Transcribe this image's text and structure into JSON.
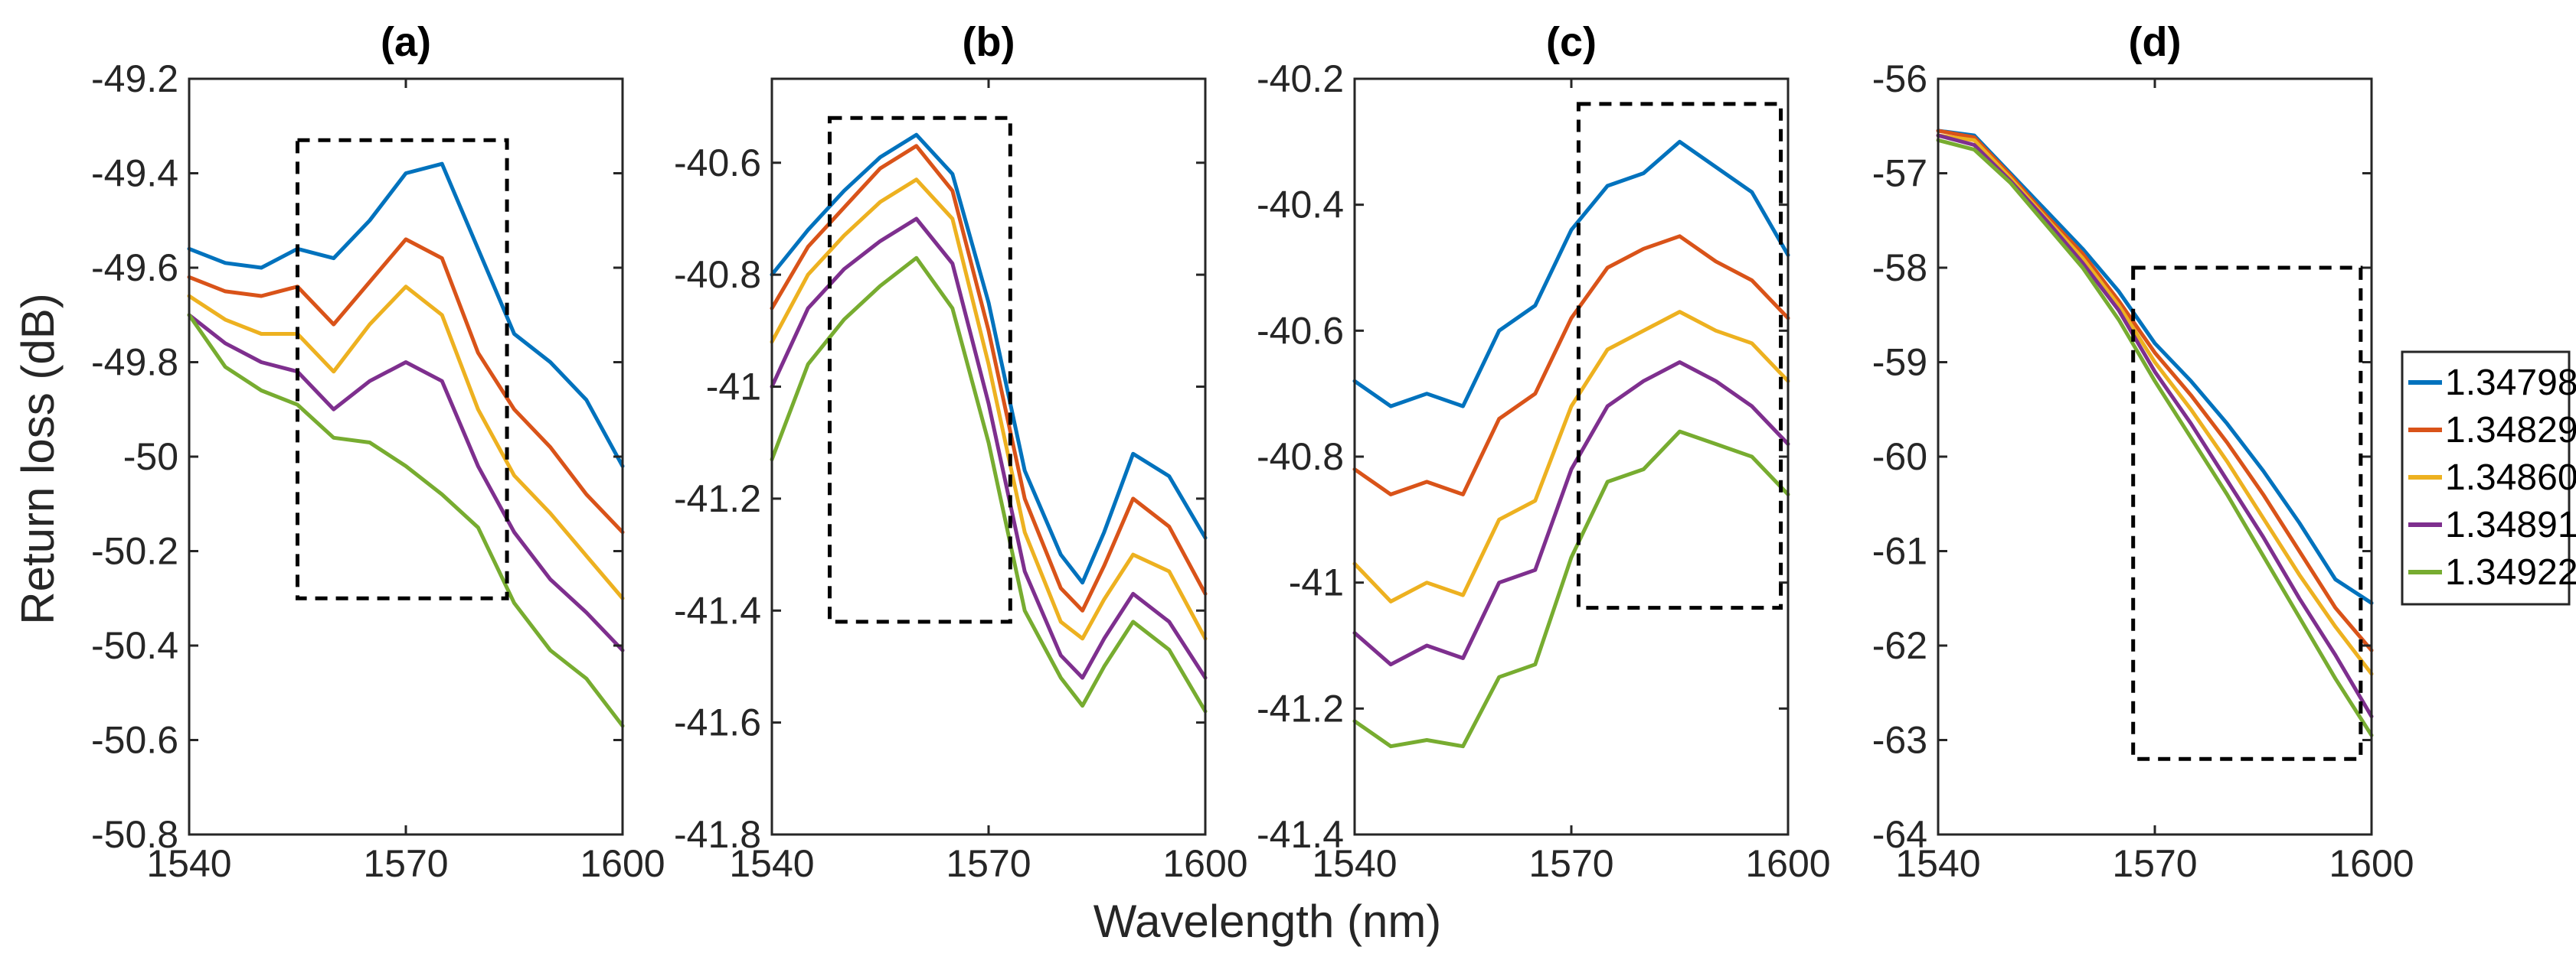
{
  "figure": {
    "ylabel": "Return loss (dB)",
    "xlabel": "Wavelength (nm)"
  },
  "legend": {
    "placement": "right",
    "entries": [
      {
        "label": "1.34798",
        "color": "#0072BD"
      },
      {
        "label": "1.34829",
        "color": "#D95319"
      },
      {
        "label": "1.34860",
        "color": "#EDB120"
      },
      {
        "label": "1.34891",
        "color": "#7E2F8E"
      },
      {
        "label": "1.34922",
        "color": "#77AC30"
      }
    ]
  },
  "chart_data": [
    {
      "type": "line",
      "title": "(a)",
      "xlabel": "Wavelength (nm)",
      "ylabel": "Return loss (dB)",
      "xlim": [
        1540,
        1600
      ],
      "ylim": [
        -50.8,
        -49.2
      ],
      "xticks": [
        1540,
        1570,
        1600
      ],
      "xtick_labels": [
        "1540",
        "1570",
        "1600"
      ],
      "yticks": [
        -49.2,
        -49.4,
        -49.6,
        -49.8,
        -50,
        -50.2,
        -50.4,
        -50.6,
        -50.8
      ],
      "ytick_labels": [
        "-49.2",
        "-49.4",
        "-49.6",
        "-49.8",
        "-50",
        "-50.2",
        "-50.4",
        "-50.6",
        "-50.8"
      ],
      "x": [
        1540,
        1545,
        1550,
        1555,
        1560,
        1565,
        1570,
        1575,
        1580,
        1585,
        1590,
        1595,
        1600
      ],
      "series": [
        {
          "name": "1.34798",
          "values": [
            -49.56,
            -49.59,
            -49.6,
            -49.56,
            -49.58,
            -49.5,
            -49.4,
            -49.38,
            -49.56,
            -49.74,
            -49.8,
            -49.88,
            -50.02
          ]
        },
        {
          "name": "1.34829",
          "values": [
            -49.62,
            -49.65,
            -49.66,
            -49.64,
            -49.72,
            -49.63,
            -49.54,
            -49.58,
            -49.78,
            -49.9,
            -49.98,
            -50.08,
            -50.16
          ]
        },
        {
          "name": "1.34860",
          "values": [
            -49.66,
            -49.71,
            -49.74,
            -49.74,
            -49.82,
            -49.72,
            -49.64,
            -49.7,
            -49.9,
            -50.04,
            -50.12,
            -50.21,
            -50.3
          ]
        },
        {
          "name": "1.34891",
          "values": [
            -49.7,
            -49.76,
            -49.8,
            -49.82,
            -49.9,
            -49.84,
            -49.8,
            -49.84,
            -50.02,
            -50.16,
            -50.26,
            -50.33,
            -50.41
          ]
        },
        {
          "name": "1.34922",
          "values": [
            -49.7,
            -49.81,
            -49.86,
            -49.89,
            -49.96,
            -49.97,
            -50.02,
            -50.08,
            -50.15,
            -50.31,
            -50.41,
            -50.47,
            -50.57
          ]
        }
      ],
      "annotation_box": {
        "x": [
          1555,
          1584
        ],
        "y": [
          -49.33,
          -50.3
        ]
      }
    },
    {
      "type": "line",
      "title": "(b)",
      "xlabel": "Wavelength (nm)",
      "ylabel": "",
      "xlim": [
        1540,
        1600
      ],
      "ylim": [
        -41.8,
        -40.45
      ],
      "xticks": [
        1540,
        1570,
        1600
      ],
      "xtick_labels": [
        "1540",
        "1570",
        "1600"
      ],
      "yticks": [
        -40.6,
        -40.8,
        -41,
        -41.2,
        -41.4,
        -41.6,
        -41.8
      ],
      "ytick_labels": [
        "-40.6",
        "-40.8",
        "-41",
        "-41.2",
        "-41.4",
        "-41.6",
        "-41.8"
      ],
      "x": [
        1540,
        1545,
        1550,
        1555,
        1560,
        1565,
        1570,
        1575,
        1580,
        1583,
        1586,
        1590,
        1595,
        1600
      ],
      "series": [
        {
          "name": "1.34798",
          "values": [
            -40.8,
            -40.72,
            -40.65,
            -40.59,
            -40.55,
            -40.62,
            -40.85,
            -41.15,
            -41.3,
            -41.35,
            -41.26,
            -41.12,
            -41.16,
            -41.27
          ]
        },
        {
          "name": "1.34829",
          "values": [
            -40.86,
            -40.75,
            -40.68,
            -40.61,
            -40.57,
            -40.65,
            -40.9,
            -41.2,
            -41.36,
            -41.4,
            -41.32,
            -41.2,
            -41.25,
            -41.37
          ]
        },
        {
          "name": "1.34860",
          "values": [
            -40.92,
            -40.8,
            -40.73,
            -40.67,
            -40.63,
            -40.7,
            -40.96,
            -41.26,
            -41.42,
            -41.45,
            -41.38,
            -41.3,
            -41.33,
            -41.45
          ]
        },
        {
          "name": "1.34891",
          "values": [
            -41.0,
            -40.86,
            -40.79,
            -40.74,
            -40.7,
            -40.78,
            -41.03,
            -41.33,
            -41.48,
            -41.52,
            -41.45,
            -41.37,
            -41.42,
            -41.52
          ]
        },
        {
          "name": "1.34922",
          "values": [
            -41.13,
            -40.96,
            -40.88,
            -40.82,
            -40.77,
            -40.86,
            -41.1,
            -41.4,
            -41.52,
            -41.57,
            -41.5,
            -41.42,
            -41.47,
            -41.58
          ]
        }
      ],
      "annotation_box": {
        "x": [
          1548,
          1573
        ],
        "y": [
          -40.52,
          -41.42
        ]
      }
    },
    {
      "type": "line",
      "title": "(c)",
      "xlabel": "Wavelength (nm)",
      "ylabel": "",
      "xlim": [
        1540,
        1600
      ],
      "ylim": [
        -41.4,
        -40.2
      ],
      "xticks": [
        1540,
        1570,
        1600
      ],
      "xtick_labels": [
        "1540",
        "1570",
        "1600"
      ],
      "yticks": [
        -40.2,
        -40.4,
        -40.6,
        -40.8,
        -41,
        -41.2,
        -41.4
      ],
      "ytick_labels": [
        "-40.2",
        "-40.4",
        "-40.6",
        "-40.8",
        "-41",
        "-41.2",
        "-41.4"
      ],
      "x": [
        1540,
        1545,
        1550,
        1555,
        1560,
        1565,
        1570,
        1575,
        1580,
        1585,
        1590,
        1595,
        1600
      ],
      "series": [
        {
          "name": "1.34798",
          "values": [
            -40.68,
            -40.72,
            -40.7,
            -40.72,
            -40.6,
            -40.56,
            -40.44,
            -40.37,
            -40.35,
            -40.3,
            -40.34,
            -40.38,
            -40.48
          ]
        },
        {
          "name": "1.34829",
          "values": [
            -40.82,
            -40.86,
            -40.84,
            -40.86,
            -40.74,
            -40.7,
            -40.58,
            -40.5,
            -40.47,
            -40.45,
            -40.49,
            -40.52,
            -40.58
          ]
        },
        {
          "name": "1.34860",
          "values": [
            -40.97,
            -41.03,
            -41.0,
            -41.02,
            -40.9,
            -40.87,
            -40.72,
            -40.63,
            -40.6,
            -40.57,
            -40.6,
            -40.62,
            -40.68
          ]
        },
        {
          "name": "1.34891",
          "values": [
            -41.08,
            -41.13,
            -41.1,
            -41.12,
            -41.0,
            -40.98,
            -40.82,
            -40.72,
            -40.68,
            -40.65,
            -40.68,
            -40.72,
            -40.78
          ]
        },
        {
          "name": "1.34922",
          "values": [
            -41.22,
            -41.26,
            -41.25,
            -41.26,
            -41.15,
            -41.13,
            -40.96,
            -40.84,
            -40.82,
            -40.76,
            -40.78,
            -40.8,
            -40.86
          ]
        }
      ],
      "annotation_box": {
        "x": [
          1571,
          1599
        ],
        "y": [
          -40.24,
          -41.04
        ]
      }
    },
    {
      "type": "line",
      "title": "(d)",
      "xlabel": "Wavelength (nm)",
      "ylabel": "",
      "xlim": [
        1540,
        1600
      ],
      "ylim": [
        -64,
        -56
      ],
      "xticks": [
        1540,
        1570,
        1600
      ],
      "xtick_labels": [
        "1540",
        "1570",
        "1600"
      ],
      "yticks": [
        -56,
        -57,
        -58,
        -59,
        -60,
        -61,
        -62,
        -63,
        -64
      ],
      "ytick_labels": [
        "-56",
        "-57",
        "-58",
        "-59",
        "-60",
        "-61",
        "-62",
        "-63",
        "-64"
      ],
      "x": [
        1540,
        1545,
        1550,
        1555,
        1560,
        1565,
        1570,
        1575,
        1580,
        1585,
        1590,
        1595,
        1600
      ],
      "series": [
        {
          "name": "1.34798",
          "values": [
            -56.55,
            -56.6,
            -57.0,
            -57.4,
            -57.8,
            -58.25,
            -58.8,
            -59.2,
            -59.65,
            -60.15,
            -60.7,
            -61.3,
            -61.55
          ]
        },
        {
          "name": "1.34829",
          "values": [
            -56.55,
            -56.62,
            -57.02,
            -57.45,
            -57.85,
            -58.35,
            -58.9,
            -59.35,
            -59.85,
            -60.4,
            -61.0,
            -61.6,
            -62.05
          ]
        },
        {
          "name": "1.34860",
          "values": [
            -56.6,
            -56.65,
            -57.05,
            -57.48,
            -57.9,
            -58.4,
            -59.0,
            -59.5,
            -60.05,
            -60.65,
            -61.25,
            -61.8,
            -62.3
          ]
        },
        {
          "name": "1.34891",
          "values": [
            -56.6,
            -56.7,
            -57.08,
            -57.5,
            -57.95,
            -58.45,
            -59.1,
            -59.65,
            -60.25,
            -60.85,
            -61.5,
            -62.1,
            -62.75
          ]
        },
        {
          "name": "1.34922",
          "values": [
            -56.65,
            -56.75,
            -57.1,
            -57.55,
            -58.0,
            -58.55,
            -59.2,
            -59.8,
            -60.4,
            -61.05,
            -61.7,
            -62.35,
            -62.95
          ]
        }
      ],
      "annotation_box": {
        "x": [
          1567,
          1598.5
        ],
        "y": [
          -58.0,
          -63.2
        ]
      }
    }
  ]
}
